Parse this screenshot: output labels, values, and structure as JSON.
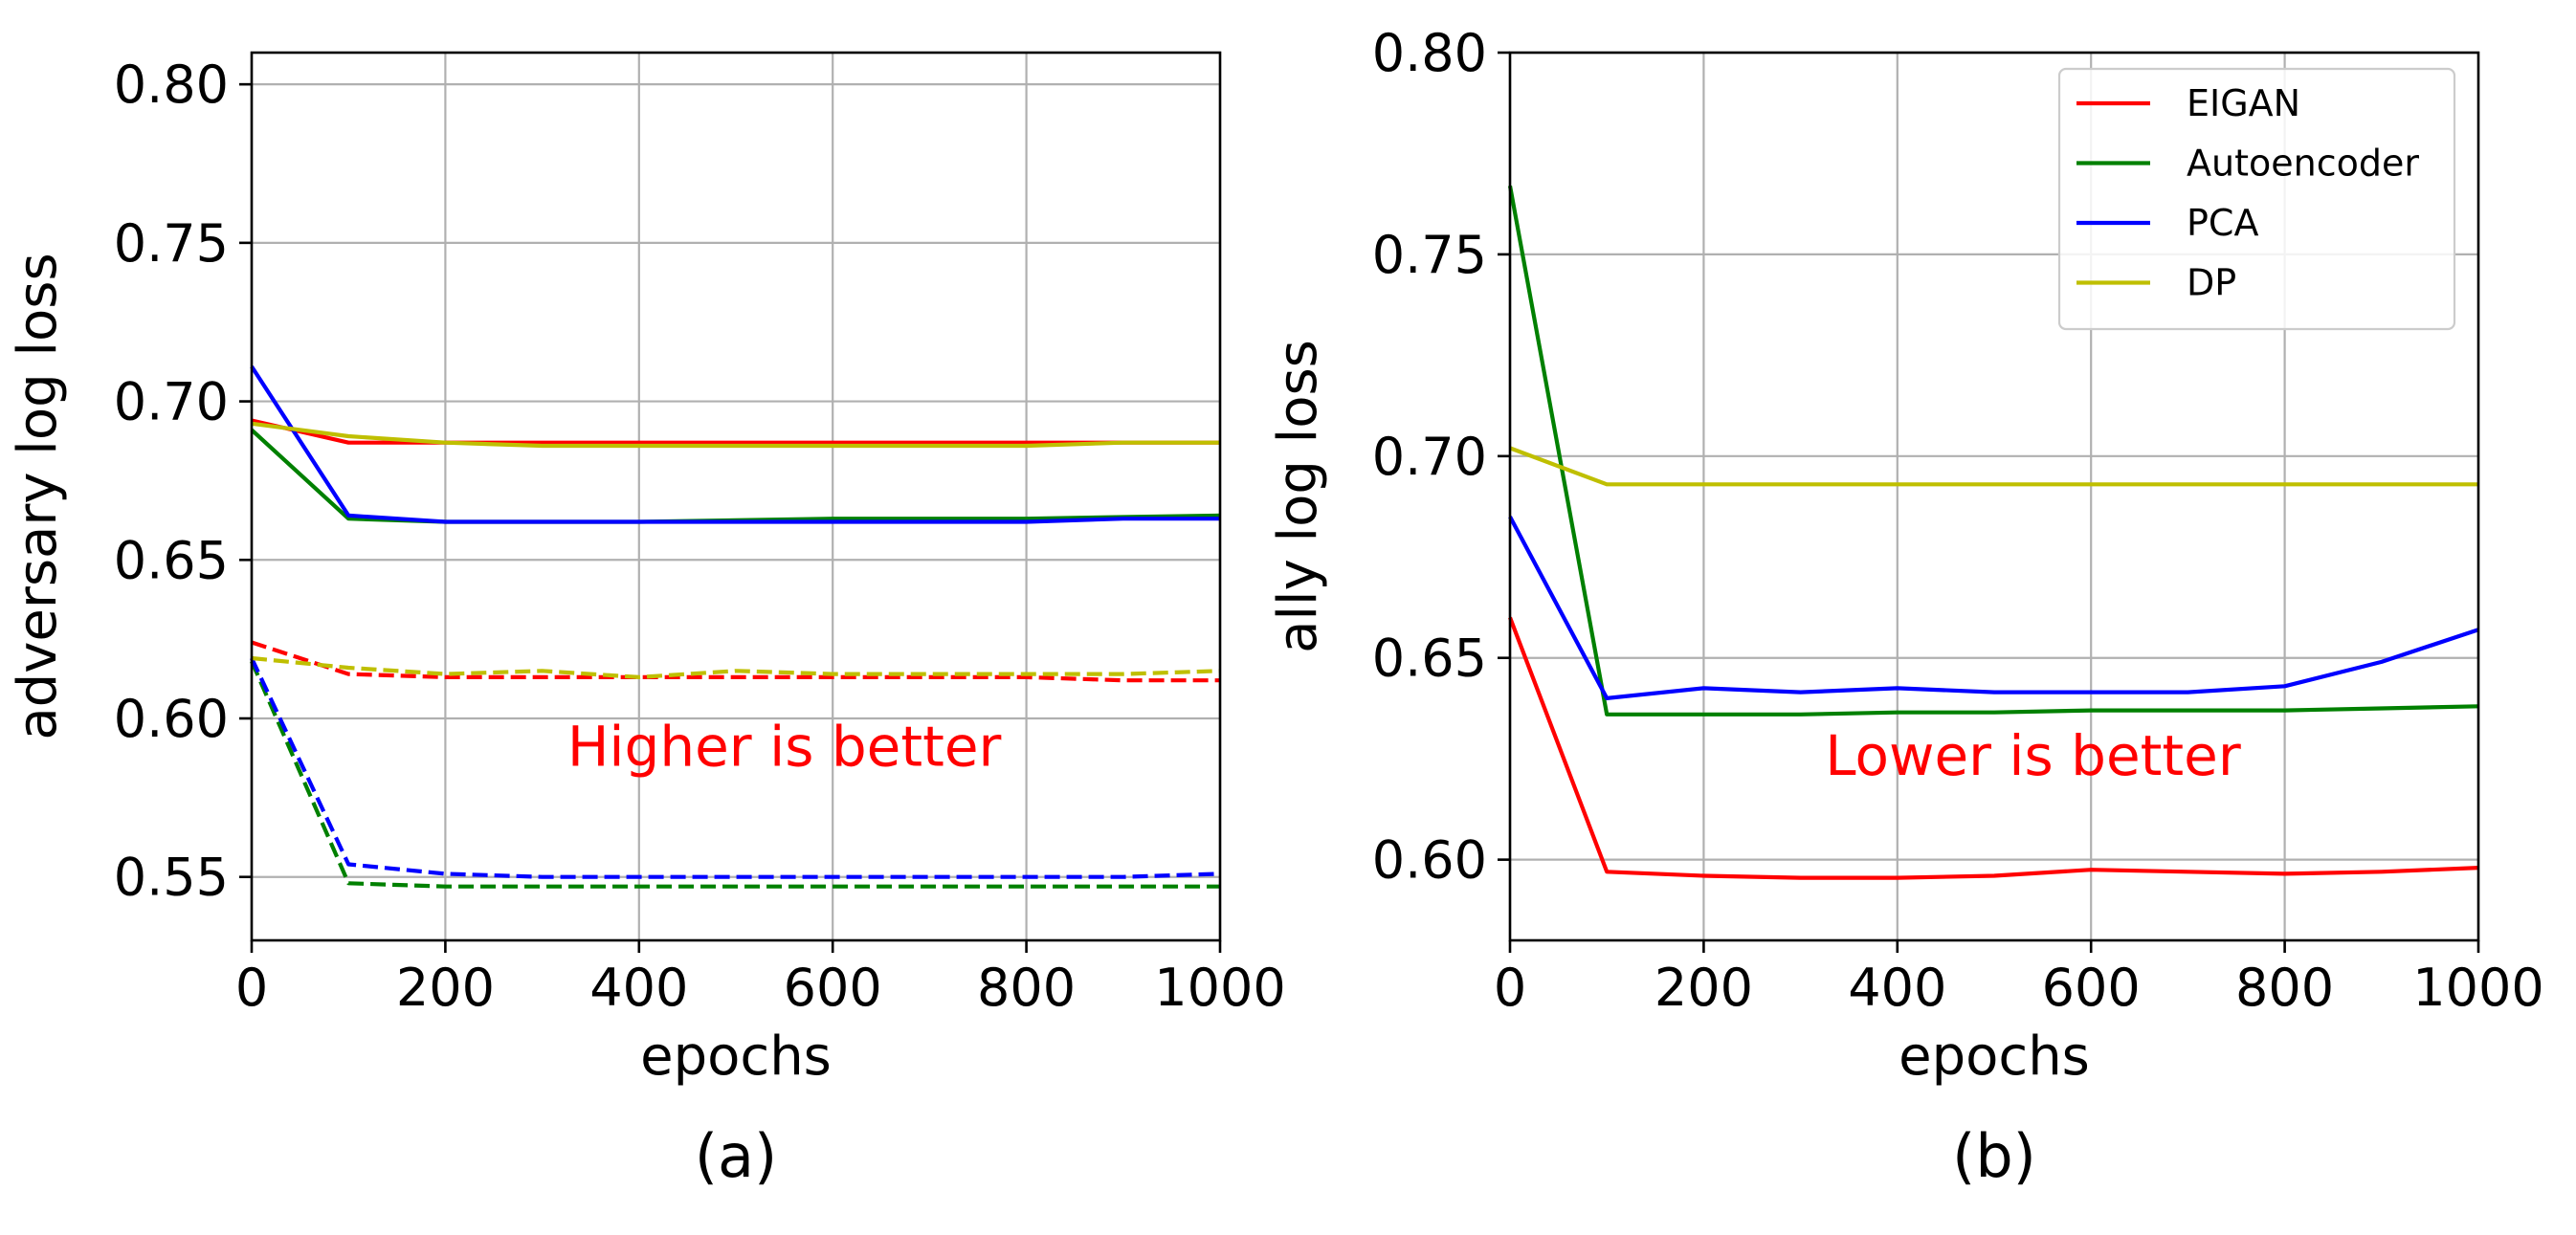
{
  "chart_data": [
    {
      "panel": "a",
      "type": "line",
      "caption": "(a)",
      "title": "",
      "xlabel": "epochs",
      "ylabel": "adversary log loss",
      "xlim": [
        0,
        1000
      ],
      "ylim": [
        0.53,
        0.81
      ],
      "xticks": [
        "0",
        "200",
        "400",
        "600",
        "800",
        "1000"
      ],
      "yticks": [
        "0.55",
        "0.60",
        "0.65",
        "0.70",
        "0.75",
        "0.80"
      ],
      "grid": true,
      "annotation": {
        "text": "Higher is better",
        "x": 550,
        "y": 0.585,
        "color": "#ff0000"
      },
      "x": [
        0,
        100,
        200,
        300,
        400,
        500,
        600,
        700,
        800,
        900,
        1000
      ],
      "series": [
        {
          "group": "EIGAN",
          "style": "solid",
          "color": "#ff0000",
          "values": [
            0.694,
            0.687,
            0.687,
            0.687,
            0.687,
            0.687,
            0.687,
            0.687,
            0.687,
            0.687,
            0.687
          ]
        },
        {
          "group": "Autoencoder",
          "style": "solid",
          "color": "#008000",
          "values": [
            0.691,
            0.663,
            0.662,
            0.662,
            0.662,
            0.6625,
            0.663,
            0.663,
            0.663,
            0.6635,
            0.664
          ]
        },
        {
          "group": "PCA",
          "style": "solid",
          "color": "#0000ff",
          "values": [
            0.711,
            0.664,
            0.662,
            0.662,
            0.662,
            0.662,
            0.662,
            0.662,
            0.662,
            0.663,
            0.663
          ]
        },
        {
          "group": "DP",
          "style": "solid",
          "color": "#bfbf00",
          "values": [
            0.693,
            0.689,
            0.687,
            0.686,
            0.686,
            0.686,
            0.686,
            0.686,
            0.686,
            0.687,
            0.687
          ]
        },
        {
          "group": "EIGAN",
          "style": "dashed",
          "color": "#ff0000",
          "values": [
            0.624,
            0.614,
            0.613,
            0.613,
            0.613,
            0.613,
            0.613,
            0.613,
            0.613,
            0.612,
            0.612
          ]
        },
        {
          "group": "Autoencoder",
          "style": "dashed",
          "color": "#008000",
          "values": [
            0.618,
            0.548,
            0.547,
            0.547,
            0.547,
            0.547,
            0.547,
            0.547,
            0.547,
            0.547,
            0.547
          ]
        },
        {
          "group": "PCA",
          "style": "dashed",
          "color": "#0000ff",
          "values": [
            0.619,
            0.554,
            0.551,
            0.55,
            0.55,
            0.55,
            0.55,
            0.55,
            0.55,
            0.55,
            0.551
          ]
        },
        {
          "group": "DP",
          "style": "dashed",
          "color": "#bfbf00",
          "values": [
            0.619,
            0.616,
            0.614,
            0.615,
            0.613,
            0.615,
            0.614,
            0.614,
            0.614,
            0.614,
            0.615
          ]
        }
      ]
    },
    {
      "panel": "b",
      "type": "line",
      "caption": "(b)",
      "title": "",
      "xlabel": "epochs",
      "ylabel": "ally log loss",
      "xlim": [
        0,
        1000
      ],
      "ylim": [
        0.58,
        0.8
      ],
      "xticks": [
        "0",
        "200",
        "400",
        "600",
        "800",
        "1000"
      ],
      "yticks": [
        "0.60",
        "0.65",
        "0.70",
        "0.75",
        "0.80"
      ],
      "grid": true,
      "legend_position": "top-right",
      "annotation": {
        "text": "Lower is better",
        "x": 540,
        "y": 0.621,
        "color": "#ff0000"
      },
      "x": [
        0,
        100,
        200,
        300,
        400,
        500,
        600,
        700,
        800,
        900,
        1000
      ],
      "series": [
        {
          "name": "EIGAN",
          "style": "solid",
          "color": "#ff0000",
          "values": [
            0.66,
            0.597,
            0.596,
            0.5955,
            0.5955,
            0.596,
            0.5975,
            0.597,
            0.5965,
            0.597,
            0.598
          ]
        },
        {
          "name": "Autoencoder",
          "style": "solid",
          "color": "#008000",
          "values": [
            0.767,
            0.636,
            0.636,
            0.636,
            0.6365,
            0.6365,
            0.637,
            0.637,
            0.637,
            0.6375,
            0.638
          ]
        },
        {
          "name": "PCA",
          "style": "solid",
          "color": "#0000ff",
          "values": [
            0.685,
            0.64,
            0.6425,
            0.6415,
            0.6425,
            0.6415,
            0.6415,
            0.6415,
            0.643,
            0.649,
            0.657
          ]
        },
        {
          "name": "DP",
          "style": "solid",
          "color": "#bfbf00",
          "values": [
            0.702,
            0.693,
            0.693,
            0.693,
            0.693,
            0.693,
            0.693,
            0.693,
            0.693,
            0.693,
            0.693
          ]
        }
      ]
    }
  ]
}
